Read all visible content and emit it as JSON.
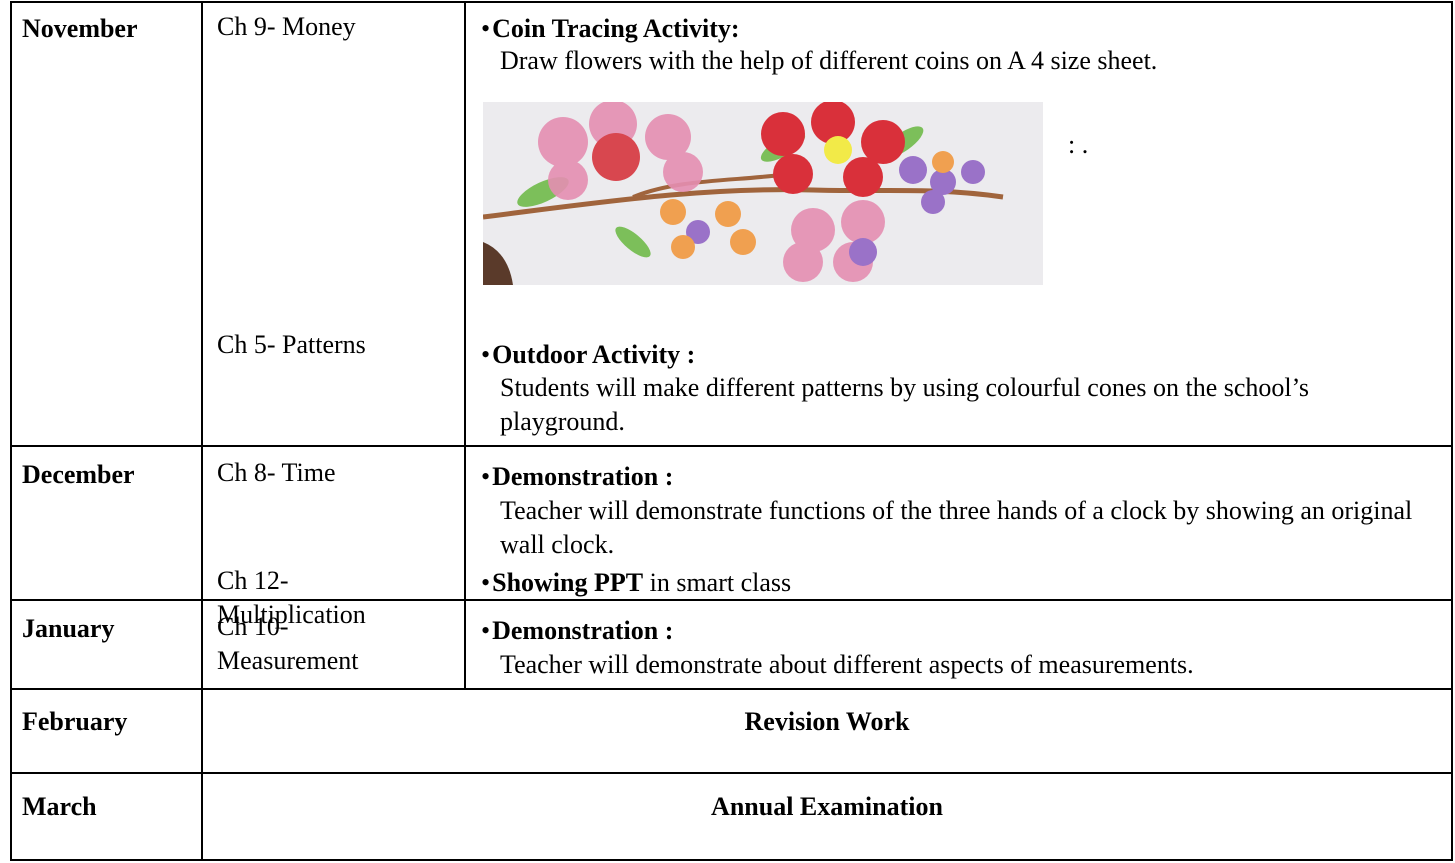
{
  "rows": [
    {
      "month": "November",
      "items": [
        {
          "chapter": "Ch 9- Money",
          "heading": "Coin Tracing Activity:",
          "text": "Draw flowers with the help of different coins on A 4 size sheet.",
          "note": ": ."
        },
        {
          "chapter": "Ch 5- Patterns",
          "heading": "Outdoor Activity :",
          "text": "Students will make different patterns by using colourful cones on the school’s playground."
        }
      ]
    },
    {
      "month": "December",
      "items": [
        {
          "chapter": "Ch 8- Time",
          "heading": "Demonstration :",
          "text": "Teacher will demonstrate functions of the three hands of a clock by showing an original wall clock."
        },
        {
          "chapter": "Ch 12- Multiplication",
          "heading": "Showing PPT",
          "text": "in smart class"
        }
      ]
    },
    {
      "month": "January",
      "items": [
        {
          "chapter": "Ch 10- Measurement",
          "heading": "Demonstration :",
          "text": "Teacher will demonstrate about different aspects of measurements."
        }
      ]
    },
    {
      "month": "February",
      "activity": "Revision Work"
    },
    {
      "month": "March",
      "activity": "Annual Examination"
    }
  ]
}
